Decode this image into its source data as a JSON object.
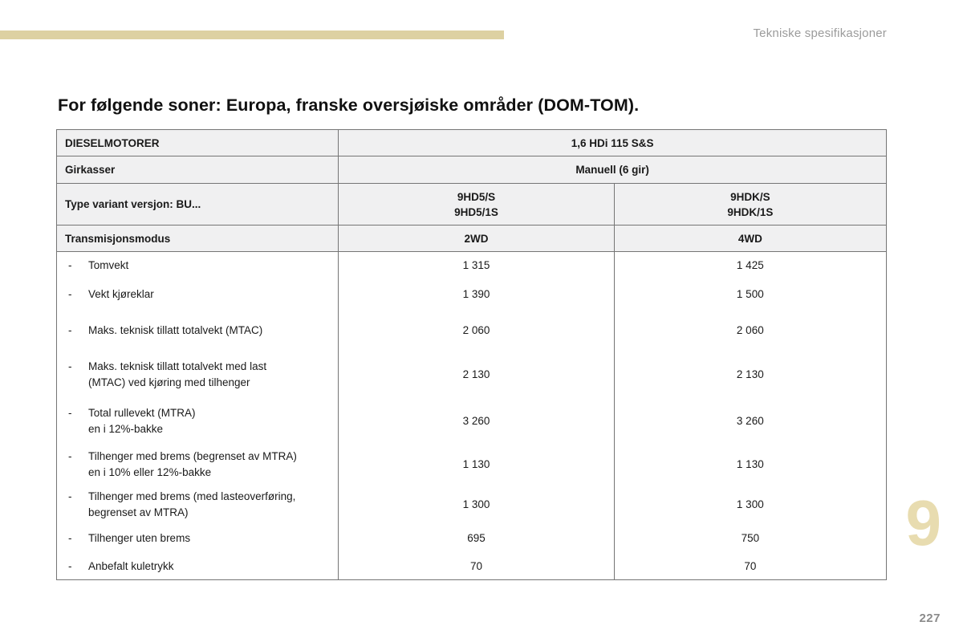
{
  "page": {
    "running_header": "Tekniske spesifikasjoner",
    "chapter_number": "9",
    "page_number": "227",
    "accent_color": "#ddd1a2",
    "chapter_color": "#e8dcb0"
  },
  "title": "For følgende soner: Europa, franske oversjøiske områder (DOM-TOM).",
  "table": {
    "bullet": "-",
    "engine_row": {
      "label": "DIESELMOTORER",
      "value": "1,6 HDi 115 S&S"
    },
    "gearbox_row": {
      "label": "Girkasser",
      "value": "Manuell (6 gir)"
    },
    "variant_row": {
      "label": "Type variant versjon: BU...",
      "col_2wd": "9HD5/S\n9HD5/1S",
      "col_4wd": "9HDK/S\n9HDK/1S"
    },
    "transmission_row": {
      "label": "Transmisjonsmodus",
      "col_2wd": "2WD",
      "col_4wd": "4WD"
    },
    "specs": [
      {
        "label": "Tomvekt",
        "val_2wd": "1 315",
        "val_4wd": "1 425"
      },
      {
        "label": "Vekt kjøreklar",
        "val_2wd": "1 390",
        "val_4wd": "1 500"
      },
      {
        "label": "Maks. teknisk tillatt totalvekt (MTAC)",
        "val_2wd": "2 060",
        "val_4wd": "2 060"
      },
      {
        "label": "Maks. teknisk tillatt totalvekt med last\n(MTAC) ved kjøring med tilhenger",
        "val_2wd": "2 130",
        "val_4wd": "2 130"
      },
      {
        "label": "Total rullevekt (MTRA)\nen i 12%-bakke",
        "val_2wd": "3 260",
        "val_4wd": "3 260"
      },
      {
        "label": "Tilhenger med brems (begrenset av MTRA)\nen i 10% eller 12%-bakke",
        "val_2wd": "1 130",
        "val_4wd": "1 130"
      },
      {
        "label": "Tilhenger med brems (med lasteoverføring,\nbegrenset av MTRA)",
        "val_2wd": "1 300",
        "val_4wd": "1 300"
      },
      {
        "label": "Tilhenger uten brems",
        "val_2wd": "695",
        "val_4wd": "750"
      },
      {
        "label": "Anbefalt kuletrykk",
        "val_2wd": "70",
        "val_4wd": "70"
      }
    ]
  }
}
